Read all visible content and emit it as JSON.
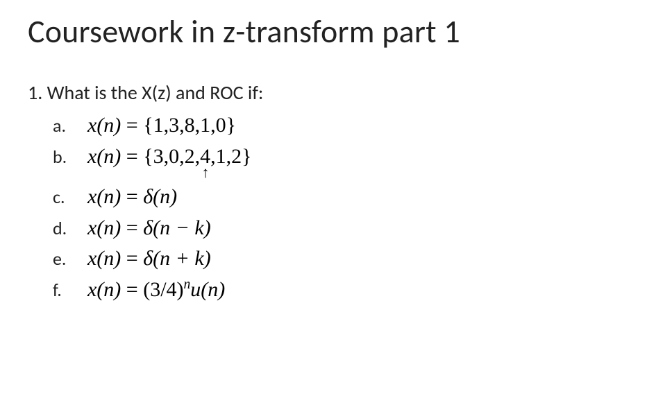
{
  "title": "Coursework in z-transform part 1",
  "question": "1. What is the X(z) and ROC if:",
  "items": [
    {
      "label": "a.",
      "lhs": "x(n)",
      "eq": " = ",
      "rhs_open": "{",
      "rhs_seq": "1,3,8,1,0",
      "rhs_close": "}"
    },
    {
      "label": "b.",
      "lhs": "x(n)",
      "eq": " = ",
      "rhs_open": "{",
      "rhs_seq": "3,0,2,4,1,2",
      "rhs_close": "}",
      "arrow_under_index": 3
    },
    {
      "label": "c.",
      "lhs": "x(n)",
      "eq": " = ",
      "rhs_raw": "δ(n)"
    },
    {
      "label": "d.",
      "lhs": "x(n)",
      "eq": " = ",
      "rhs_raw": "δ(n − k)"
    },
    {
      "label": "e.",
      "lhs": "x(n)",
      "eq": " = ",
      "rhs_raw": "δ(n + k)"
    },
    {
      "label": "f.",
      "lhs": "x(n)",
      "eq": " = ",
      "rhs_base": "(3/4)",
      "rhs_exp": "n",
      "rhs_tail": "u(n)"
    }
  ],
  "style": {
    "title_fontsize": 46,
    "question_fontsize": 28,
    "label_fontsize": 26,
    "formula_fontsize": 30,
    "title_color": "#222222",
    "text_color": "#1a1a1a",
    "formula_color": "#000000",
    "background": "#ffffff",
    "formula_font": "Times New Roman",
    "ui_font": "Calibri"
  }
}
